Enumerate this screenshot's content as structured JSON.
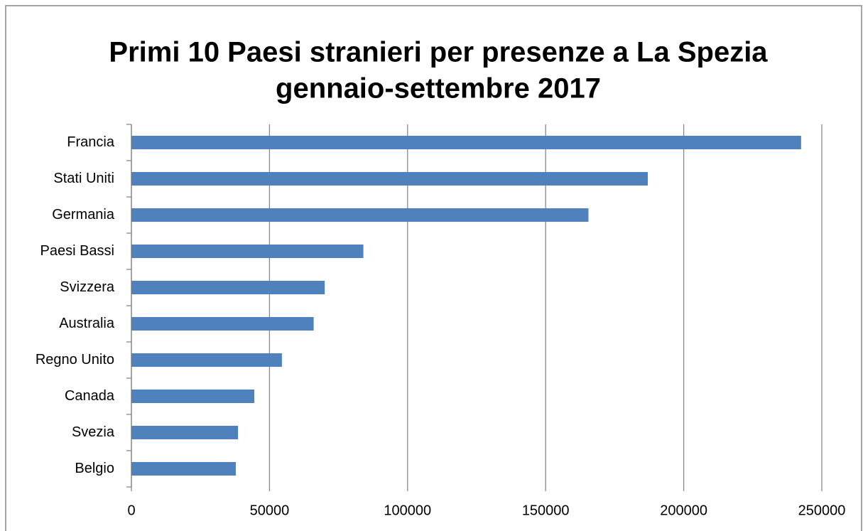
{
  "chart_data": {
    "type": "bar",
    "orientation": "horizontal",
    "title": "Primi 10 Paesi stranieri per presenze a La Spezia",
    "subtitle": "gennaio-settembre 2017",
    "categories": [
      "Francia",
      "Stati Uniti",
      "Germania",
      "Paesi Bassi",
      "Svizzera",
      "Australia",
      "Regno Unito",
      "Canada",
      "Svezia",
      "Belgio"
    ],
    "values": [
      242500,
      187000,
      165500,
      84000,
      70000,
      66000,
      54500,
      44500,
      38600,
      37800
    ],
    "color": "#4f81bd",
    "xlim": [
      0,
      250000
    ],
    "xticks": [
      0,
      50000,
      100000,
      150000,
      200000,
      250000
    ],
    "grid": true
  }
}
